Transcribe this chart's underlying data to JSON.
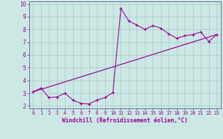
{
  "xlabel": "Windchill (Refroidissement éolien,°C)",
  "background_color": "#cce8e4",
  "grid_color": "#aacccc",
  "line_color": "#990099",
  "spine_color": "#666699",
  "xlim": [
    -0.5,
    23.5
  ],
  "ylim": [
    1.8,
    10.2
  ],
  "xticks": [
    0,
    1,
    2,
    3,
    4,
    5,
    6,
    7,
    8,
    9,
    10,
    11,
    12,
    13,
    14,
    15,
    16,
    17,
    18,
    19,
    20,
    21,
    22,
    23
  ],
  "yticks": [
    2,
    3,
    4,
    5,
    6,
    7,
    8,
    9,
    10
  ],
  "scatter_x": [
    0,
    1,
    2,
    3,
    4,
    5,
    6,
    7,
    8,
    9,
    10,
    11,
    12,
    13,
    14,
    15,
    16,
    17,
    18,
    19,
    20,
    21,
    22,
    23
  ],
  "scatter_y": [
    3.1,
    3.4,
    2.65,
    2.7,
    3.0,
    2.45,
    2.2,
    2.15,
    2.45,
    2.65,
    3.05,
    9.65,
    8.65,
    8.35,
    8.0,
    8.3,
    8.1,
    7.65,
    7.3,
    7.5,
    7.6,
    7.8,
    7.05,
    7.6
  ],
  "line2_x": [
    0,
    23
  ],
  "line2_y": [
    3.1,
    7.6
  ]
}
